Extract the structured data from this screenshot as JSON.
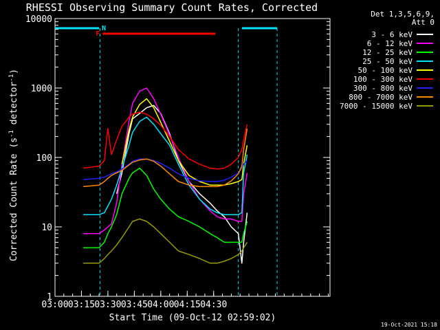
{
  "chart_data": {
    "type": "line",
    "title": "RHESSI Observing Summary Count Rates, Corrected",
    "xlabel": "Start Time (09-Oct-12 02:59:02)",
    "ylabel_main": "Corrected Count Rate (s",
    "ylabel_sup1": "-1",
    "ylabel_mid": " detector",
    "ylabel_sup2": "-1",
    "ylabel_end": ")",
    "yscale": "log",
    "ylim": [
      1,
      10000
    ],
    "xlim_minutes": [
      180,
      336
    ],
    "x_ticks": [
      {
        "value": 180,
        "label": "03:00"
      },
      {
        "value": 195,
        "label": "03:15"
      },
      {
        "value": 210,
        "label": "03:30"
      },
      {
        "value": 225,
        "label": "03:45"
      },
      {
        "value": 240,
        "label": "04:00"
      },
      {
        "value": 255,
        "label": "04:15"
      },
      {
        "value": 270,
        "label": "04:30"
      }
    ],
    "y_ticks": [
      {
        "value": 1,
        "label": "1"
      },
      {
        "value": 10,
        "label": "10"
      },
      {
        "value": 100,
        "label": "100"
      },
      {
        "value": 1000,
        "label": "1000"
      },
      {
        "value": 10000,
        "label": "10000"
      }
    ],
    "legend_header": [
      "Det 1,3,5,6,9,",
      "Att 0"
    ],
    "legend_placement": "right",
    "timestamp": "19-Oct-2021 15:18",
    "flags": {
      "day_color": "#00e5ff",
      "flare_color": "#ff0000",
      "night_label": "N",
      "flare_label": "F",
      "flare_start": 207,
      "flare_end": 271,
      "day_segments": [
        [
          180,
          205
        ],
        [
          286,
          306
        ]
      ],
      "night_dashes": [
        205.5,
        284,
        306
      ]
    },
    "series": [
      {
        "name": "3 - 6 keV",
        "color": "#ffffff",
        "x": [
          196,
          205,
          208,
          210,
          212,
          215,
          218,
          222,
          224,
          228,
          232,
          236,
          240,
          245,
          250,
          256,
          262,
          268,
          272,
          276,
          280,
          284,
          286,
          287,
          289
        ],
        "y": [
          null,
          null,
          null,
          null,
          null,
          30,
          60,
          220,
          360,
          430,
          520,
          560,
          430,
          220,
          90,
          45,
          30,
          22,
          17,
          14,
          10,
          8,
          3,
          6,
          16
        ]
      },
      {
        "name": "6 - 12 keV",
        "color": "#ff00ff",
        "x": [
          196,
          205,
          208,
          210,
          212,
          215,
          218,
          222,
          224,
          228,
          232,
          236,
          240,
          245,
          250,
          256,
          262,
          268,
          272,
          276,
          280,
          284,
          286,
          287,
          289
        ],
        "y": [
          8,
          8,
          9,
          10,
          11,
          22,
          80,
          330,
          600,
          900,
          1000,
          700,
          420,
          210,
          100,
          45,
          25,
          17,
          14,
          13,
          13,
          12,
          12,
          30,
          60
        ]
      },
      {
        "name": "12 - 25 keV",
        "color": "#00ff00",
        "x": [
          196,
          205,
          208,
          210,
          212,
          215,
          218,
          222,
          224,
          228,
          232,
          236,
          240,
          245,
          250,
          256,
          262,
          268,
          272,
          276,
          280,
          284,
          286,
          287,
          289
        ],
        "y": [
          5,
          5,
          6,
          8,
          10,
          15,
          30,
          50,
          60,
          70,
          55,
          35,
          25,
          18,
          14,
          12,
          10,
          8,
          7,
          6,
          6,
          6,
          6,
          8,
          12
        ]
      },
      {
        "name": "25 - 50 keV",
        "color": "#00e5ff",
        "x": [
          196,
          205,
          208,
          210,
          212,
          215,
          218,
          222,
          224,
          228,
          232,
          236,
          240,
          245,
          250,
          256,
          262,
          268,
          272,
          276,
          280,
          284,
          286,
          287,
          289
        ],
        "y": [
          15,
          15,
          16,
          20,
          25,
          40,
          70,
          150,
          230,
          330,
          380,
          300,
          220,
          150,
          80,
          40,
          25,
          18,
          16,
          15,
          15,
          15,
          16,
          60,
          110
        ]
      },
      {
        "name": "50 - 100 keV",
        "color": "#ffff00",
        "x": [
          196,
          205,
          208,
          210,
          212,
          215,
          218,
          222,
          224,
          228,
          232,
          236,
          240,
          245,
          250,
          256,
          262,
          268,
          272,
          276,
          280,
          284,
          286,
          287,
          289
        ],
        "y": [
          null,
          null,
          null,
          null,
          null,
          null,
          80,
          250,
          380,
          580,
          700,
          520,
          320,
          170,
          90,
          55,
          45,
          40,
          40,
          40,
          42,
          45,
          48,
          80,
          150
        ]
      },
      {
        "name": "100 - 300 keV",
        "color": "#ff0000",
        "x": [
          196,
          205,
          208,
          210,
          212,
          215,
          218,
          222,
          224,
          228,
          232,
          236,
          240,
          245,
          250,
          256,
          262,
          268,
          272,
          276,
          280,
          284,
          286,
          287,
          289
        ],
        "y": [
          70,
          75,
          90,
          260,
          110,
          180,
          280,
          380,
          420,
          450,
          420,
          360,
          290,
          200,
          130,
          95,
          80,
          70,
          68,
          70,
          80,
          100,
          130,
          180,
          300
        ]
      },
      {
        "name": "300 - 800 keV",
        "color": "#2020ff",
        "x": [
          196,
          205,
          208,
          210,
          212,
          215,
          218,
          222,
          224,
          228,
          232,
          236,
          240,
          245,
          250,
          256,
          262,
          268,
          272,
          276,
          280,
          284,
          286,
          287,
          289
        ],
        "y": [
          48,
          50,
          52,
          55,
          58,
          62,
          68,
          80,
          88,
          95,
          95,
          90,
          82,
          70,
          58,
          50,
          46,
          45,
          45,
          47,
          52,
          60,
          70,
          80,
          90
        ]
      },
      {
        "name": "800 - 7000 keV",
        "color": "#ff8800",
        "x": [
          196,
          205,
          208,
          210,
          212,
          215,
          218,
          222,
          224,
          228,
          232,
          236,
          240,
          245,
          250,
          256,
          262,
          268,
          272,
          276,
          280,
          284,
          286,
          287,
          289
        ],
        "y": [
          38,
          40,
          45,
          50,
          55,
          60,
          65,
          78,
          85,
          92,
          95,
          88,
          75,
          58,
          45,
          40,
          38,
          38,
          38,
          40,
          46,
          58,
          75,
          130,
          260
        ]
      },
      {
        "name": "7000 - 15000 keV",
        "color": "#999900",
        "x": [
          196,
          205,
          208,
          210,
          212,
          215,
          218,
          222,
          224,
          228,
          232,
          236,
          240,
          245,
          250,
          256,
          262,
          268,
          272,
          276,
          280,
          284,
          286,
          287,
          289
        ],
        "y": [
          3,
          3,
          3.5,
          4,
          4.5,
          5.5,
          7,
          10,
          12,
          13,
          12,
          10,
          8,
          6,
          4.5,
          4,
          3.5,
          3,
          3,
          3.2,
          3.5,
          4,
          4.5,
          5,
          6
        ]
      }
    ]
  }
}
